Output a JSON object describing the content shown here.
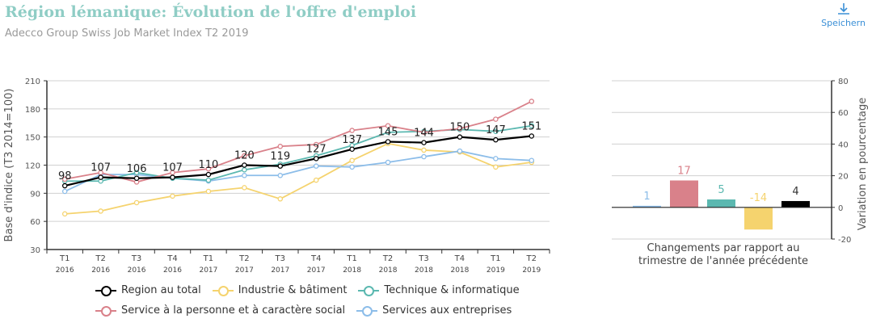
{
  "header": {
    "title": "Région lémanique: Évolution de l'offre d'emploi",
    "subtitle": "Adecco Group Swiss Job Market Index T2 2019",
    "save_label": "Speichern",
    "save_icon": "download-icon"
  },
  "colors": {
    "title": "#8fcdc5",
    "total": "#000000",
    "industrie": "#f5d36e",
    "technique": "#5bb8b0",
    "service": "#d9818a",
    "entreprises": "#8cbde9"
  },
  "chart_data": [
    {
      "type": "line",
      "ylabel": "Base d'indice (T3 2014=100)",
      "ylim": [
        30,
        210
      ],
      "yticks": [
        30,
        60,
        90,
        120,
        150,
        180,
        210
      ],
      "grid": true,
      "legend": "bottom",
      "categories": [
        [
          "T1",
          "2016"
        ],
        [
          "T2",
          "2016"
        ],
        [
          "T3",
          "2016"
        ],
        [
          "T4",
          "2016"
        ],
        [
          "T1",
          "2017"
        ],
        [
          "T2",
          "2017"
        ],
        [
          "T3",
          "2017"
        ],
        [
          "T4",
          "2017"
        ],
        [
          "T1",
          "2018"
        ],
        [
          "T2",
          "2018"
        ],
        [
          "T3",
          "2018"
        ],
        [
          "T4",
          "2018"
        ],
        [
          "T1",
          "2019"
        ],
        [
          "T2",
          "2019"
        ]
      ],
      "series": [
        {
          "key": "industrie",
          "name": "Industrie & bâtiment",
          "color": "#f5d36e",
          "values": [
            68,
            71,
            80,
            87,
            92,
            96,
            84,
            104,
            125,
            143,
            136,
            134,
            118,
            123
          ]
        },
        {
          "key": "entreprises",
          "name": "Services aux entreprises",
          "color": "#8cbde9",
          "values": [
            92,
            110,
            110,
            106,
            103,
            109,
            109,
            119,
            118,
            123,
            129,
            135,
            127,
            125
          ]
        },
        {
          "key": "technique",
          "name": "Technique & informatique",
          "color": "#5bb8b0",
          "values": [
            103,
            103,
            112,
            106,
            104,
            115,
            121,
            130,
            141,
            155,
            156,
            158,
            156,
            162
          ]
        },
        {
          "key": "service",
          "name": "Service à la personne et à caractère social",
          "color": "#d9818a",
          "values": [
            105,
            112,
            102,
            112,
            116,
            130,
            140,
            142,
            157,
            162,
            155,
            159,
            169,
            188
          ]
        },
        {
          "key": "total",
          "name": "Region au total",
          "color": "#000000",
          "values": [
            98,
            107,
            106,
            107,
            110,
            120,
            119,
            127,
            137,
            145,
            144,
            150,
            147,
            151
          ],
          "labels": [
            "98",
            "107",
            "106",
            "107",
            "110",
            "120",
            "119",
            "127",
            "137",
            "145",
            "144",
            "150",
            "147",
            "151"
          ]
        }
      ]
    },
    {
      "type": "bar",
      "ylabel": "Variation en pourcentage",
      "xlabel": "Changements par rapport au trimestre de l'année précédente",
      "ylim": [
        -20,
        80
      ],
      "yticks": [
        -20,
        0,
        20,
        40,
        60,
        80
      ],
      "grid": true,
      "bars": [
        {
          "key": "entreprises",
          "value": 1,
          "label": "1",
          "color": "#8cbde9"
        },
        {
          "key": "service",
          "value": 17,
          "label": "17",
          "color": "#d9818a"
        },
        {
          "key": "technique",
          "value": 5,
          "label": "5",
          "color": "#5bb8b0"
        },
        {
          "key": "industrie",
          "value": -14,
          "label": "-14",
          "color": "#f5d36e"
        },
        {
          "key": "total",
          "value": 4,
          "label": "4",
          "color": "#000000"
        }
      ]
    }
  ],
  "legend": {
    "row1": [
      {
        "key": "total",
        "label": "Region au total",
        "color": "#000000"
      },
      {
        "key": "industrie",
        "label": "Industrie & bâtiment",
        "color": "#f5d36e"
      },
      {
        "key": "technique",
        "label": "Technique & informatique",
        "color": "#5bb8b0"
      }
    ],
    "row2": [
      {
        "key": "service",
        "label": "Service à la personne et à caractère social",
        "color": "#d9818a"
      },
      {
        "key": "entreprises",
        "label": "Services aux entreprises",
        "color": "#8cbde9"
      }
    ]
  }
}
